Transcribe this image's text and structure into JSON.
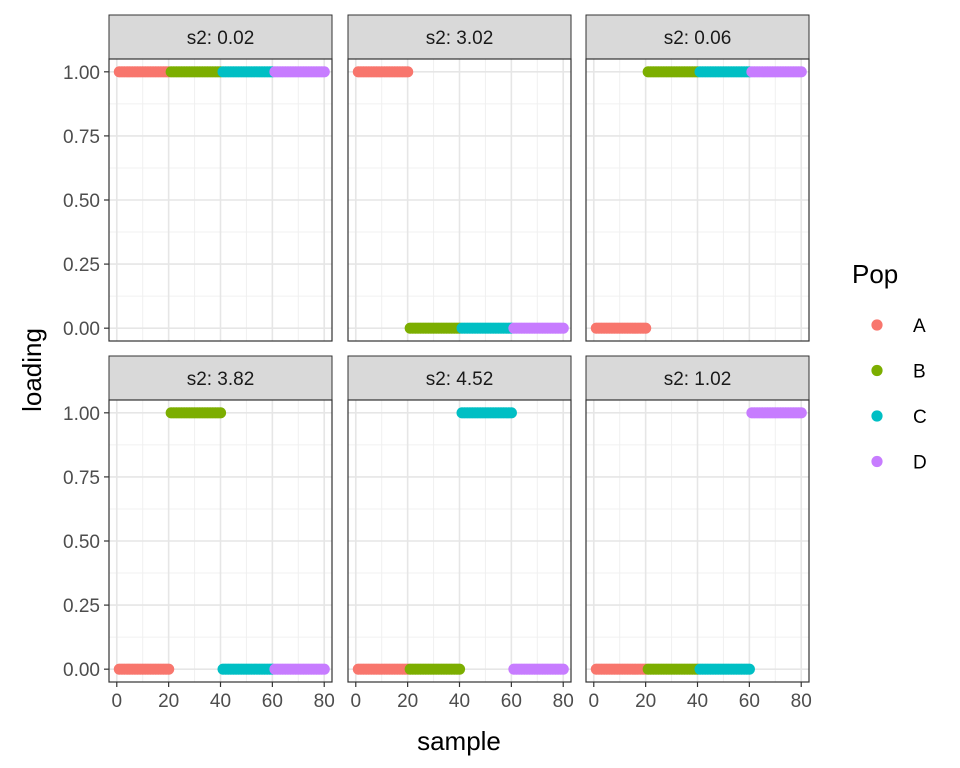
{
  "chart_data": {
    "type": "scatter",
    "xlabel": "sample",
    "ylabel": "loading",
    "xlim": [
      -3,
      83
    ],
    "ylim": [
      -0.05,
      1.05
    ],
    "x_ticks": [
      0,
      20,
      40,
      60,
      80
    ],
    "x_tick_labels": [
      "0",
      "20",
      "40",
      "60",
      "80"
    ],
    "y_ticks": [
      0,
      0.25,
      0.5,
      0.75,
      1
    ],
    "y_tick_labels": [
      "0.00",
      "0.25",
      "0.50",
      "0.75",
      "1.00"
    ],
    "grid": true,
    "legend": {
      "title": "Pop",
      "position": "right",
      "entries": [
        {
          "label": "A",
          "color": "#F8766D"
        },
        {
          "label": "B",
          "color": "#7CAE00"
        },
        {
          "label": "C",
          "color": "#00BFC4"
        },
        {
          "label": "D",
          "color": "#C77CFF"
        }
      ]
    },
    "population_ranges": [
      {
        "pop": "A",
        "x_start": 1,
        "x_end": 20
      },
      {
        "pop": "B",
        "x_start": 21,
        "x_end": 40
      },
      {
        "pop": "C",
        "x_start": 41,
        "x_end": 60
      },
      {
        "pop": "D",
        "x_start": 61,
        "x_end": 80
      }
    ],
    "panels": [
      {
        "label": "s2: 0.02",
        "loadings": {
          "A": 1,
          "B": 1,
          "C": 1,
          "D": 1
        }
      },
      {
        "label": "s2: 3.02",
        "loadings": {
          "A": 1,
          "B": 0,
          "C": 0,
          "D": 0
        }
      },
      {
        "label": "s2: 0.06",
        "loadings": {
          "A": 0,
          "B": 1,
          "C": 1,
          "D": 1
        }
      },
      {
        "label": "s2: 3.82",
        "loadings": {
          "A": 0,
          "B": 1,
          "C": 0,
          "D": 0
        }
      },
      {
        "label": "s2: 4.52",
        "loadings": {
          "A": 0,
          "B": 0,
          "C": 1,
          "D": 0
        }
      },
      {
        "label": "s2: 1.02",
        "loadings": {
          "A": 0,
          "B": 0,
          "C": 0,
          "D": 1
        }
      }
    ]
  }
}
